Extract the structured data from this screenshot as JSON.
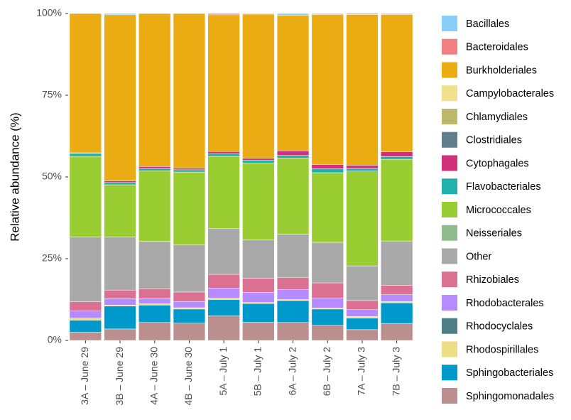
{
  "chart_data": {
    "type": "stacked_bar",
    "ylabel": "Relative abundance (%)",
    "categories": [
      "3A – June 29",
      "3B – June 29",
      "4A – June 30",
      "4B – June 30",
      "5A – July 1",
      "5B – July 1",
      "6A – July 2",
      "6B – July 2",
      "7A – July 3",
      "7B – July 3"
    ],
    "ylim": [
      0,
      100
    ],
    "yticks": [
      {
        "value": 0,
        "label": "0%"
      },
      {
        "value": 25,
        "label": "25%"
      },
      {
        "value": 50,
        "label": "50%"
      },
      {
        "value": 75,
        "label": "75%"
      },
      {
        "value": 100,
        "label": "100%"
      }
    ],
    "grid": false,
    "legend": "right",
    "series": [
      {
        "name": "Bacillales",
        "color": "#87cefa",
        "values": [
          0,
          0.4,
          0,
          0,
          0,
          0,
          0.6,
          0.3,
          0,
          0.3
        ]
      },
      {
        "name": "Bacteroidales",
        "color": "#f08080",
        "values": [
          0,
          0,
          0,
          0,
          0.4,
          0.2,
          0,
          0,
          0.3,
          0
        ]
      },
      {
        "name": "Burkholderiales",
        "color": "#eaab13",
        "values": [
          42.6,
          50.8,
          46.8,
          47.3,
          41.8,
          44.1,
          41.4,
          45.9,
          46.1,
          42
        ]
      },
      {
        "name": "Campylobacterales",
        "color": "#f0e08c",
        "values": [
          0,
          0,
          0,
          0,
          0,
          0,
          0,
          0,
          0,
          0
        ]
      },
      {
        "name": "Chlamydiales",
        "color": "#bdb76b",
        "values": [
          0,
          0,
          0,
          0,
          0,
          0,
          0,
          0,
          0,
          0
        ]
      },
      {
        "name": "Clostridiales",
        "color": "#5f7f8a",
        "values": [
          0,
          0,
          0,
          0,
          0,
          0,
          0,
          0,
          0,
          0
        ]
      },
      {
        "name": "Cytophagales",
        "color": "#d02f7a",
        "values": [
          0.2,
          0.5,
          0.6,
          0.5,
          0.7,
          0.6,
          1.4,
          1.3,
          1,
          1.5
        ]
      },
      {
        "name": "Flavobacteriales",
        "color": "#20b2aa",
        "values": [
          0.9,
          0.7,
          0.7,
          0.7,
          0.8,
          0.8,
          0.8,
          1.2,
          0.8,
          0.8
        ]
      },
      {
        "name": "Micrococcales",
        "color": "#9acd32",
        "values": [
          24.6,
          15.9,
          21.6,
          22.3,
          22.1,
          23.5,
          23.3,
          21.3,
          29,
          25
        ]
      },
      {
        "name": "Neisseriales",
        "color": "#8fbc8f",
        "values": [
          0,
          0,
          0,
          0,
          0,
          0,
          0,
          0,
          0,
          0
        ]
      },
      {
        "name": "Other",
        "color": "#a9a9a9",
        "values": [
          19.9,
          16.3,
          14.5,
          14.4,
          14,
          11.8,
          13.3,
          12.4,
          10.6,
          13.6
        ]
      },
      {
        "name": "Rhizobiales",
        "color": "#db7093",
        "values": [
          2.8,
          2.6,
          3,
          2.9,
          4.2,
          4.3,
          3.7,
          4.6,
          2.8,
          2.8
        ]
      },
      {
        "name": "Rhodobacterales",
        "color": "#b58cff",
        "values": [
          2.2,
          2,
          1.6,
          1.9,
          3.1,
          3.1,
          3,
          3.1,
          2.1,
          2.1
        ]
      },
      {
        "name": "Rhodocyclales",
        "color": "#4f7f86",
        "values": [
          0,
          0,
          0,
          0,
          0,
          0,
          0,
          0,
          0,
          0
        ]
      },
      {
        "name": "Rhodospirillales",
        "color": "#eedd82",
        "values": [
          0.6,
          0.3,
          0.4,
          0.4,
          0.4,
          0.3,
          0.3,
          0.3,
          0.5,
          0.4
        ]
      },
      {
        "name": "Sphingobacteriales",
        "color": "#0099cc",
        "values": [
          3.7,
          7,
          5.3,
          4.3,
          5,
          5.7,
          6.7,
          5,
          3.5,
          6.3
        ]
      },
      {
        "name": "Sphingomonadales",
        "color": "#bc8f8f",
        "values": [
          2.5,
          3.5,
          5.5,
          5.3,
          7.5,
          5.6,
          5.5,
          4.6,
          3.3,
          5.2
        ]
      }
    ]
  }
}
